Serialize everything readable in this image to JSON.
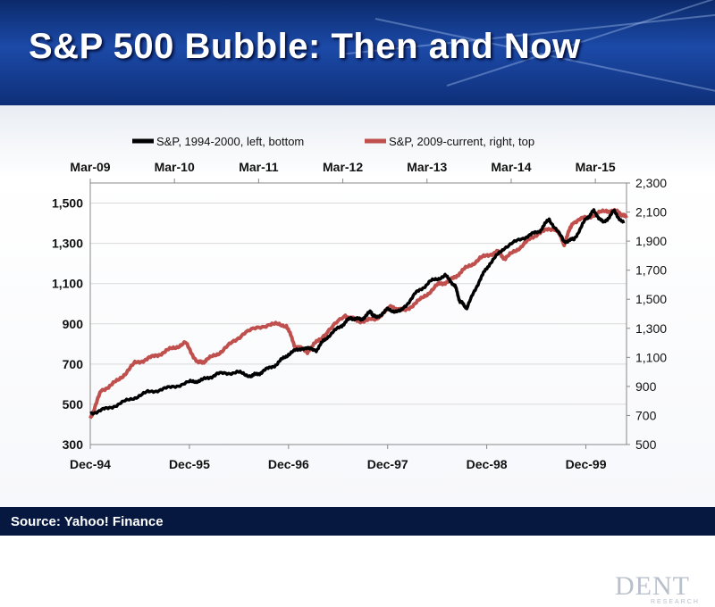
{
  "title": "S&P 500 Bubble: Then and Now",
  "source": "Source: Yahoo! Finance",
  "logo": {
    "main": "DENT",
    "sub": "RESEARCH"
  },
  "colors": {
    "black_series": "#000000",
    "red_series": "#c0504d",
    "header": "#1c4aa8",
    "footer": "#06183f"
  },
  "chart_data": {
    "type": "line",
    "legend": [
      "S&P, 1994-2000, left, bottom",
      "S&P, 2009-current, right, top"
    ],
    "left_axis": {
      "ticks": [
        "300",
        "500",
        "700",
        "900",
        "1,100",
        "1,300",
        "1,500"
      ],
      "range": [
        300,
        1600
      ]
    },
    "right_axis": {
      "ticks": [
        "500",
        "700",
        "900",
        "1,100",
        "1,300",
        "1,500",
        "1,700",
        "1,900",
        "2,100",
        "2,300"
      ],
      "range": [
        500,
        2300
      ]
    },
    "bottom_axis": {
      "ticks": [
        "Dec-94",
        "Dec-95",
        "Dec-96",
        "Dec-97",
        "Dec-98",
        "Dec-99"
      ],
      "range": [
        1994.92,
        2000.33
      ]
    },
    "top_axis": {
      "ticks": [
        "Mar-09",
        "Mar-10",
        "Mar-11",
        "Mar-12",
        "Mar-13",
        "Mar-14",
        "Mar-15"
      ],
      "range": [
        2009.17,
        2015.54
      ]
    },
    "series": [
      {
        "name": "S&P, 1994-2000, left, bottom",
        "axis": "left",
        "x": [
          1994.92,
          1995.1,
          1995.3,
          1995.5,
          1995.7,
          1995.92,
          1996.05,
          1996.2,
          1996.4,
          1996.55,
          1996.65,
          1996.8,
          1996.92,
          1997.05,
          1997.2,
          1997.3,
          1997.45,
          1997.55,
          1997.65,
          1997.75,
          1997.8,
          1997.92,
          1998.05,
          1998.2,
          1998.35,
          1998.5,
          1998.6,
          1998.65,
          1998.72,
          1998.85,
          1998.95,
          1999.1,
          1999.3,
          1999.45,
          1999.55,
          1999.7,
          1999.8,
          1999.92,
          2000.0,
          2000.1,
          2000.2,
          2000.3
        ],
        "values": [
          455,
          480,
          520,
          560,
          580,
          610,
          620,
          650,
          660,
          640,
          660,
          700,
          750,
          780,
          770,
          830,
          890,
          930,
          920,
          960,
          930,
          970,
          960,
          1050,
          1110,
          1140,
          1090,
          1010,
          980,
          1120,
          1200,
          1280,
          1330,
          1360,
          1420,
          1310,
          1320,
          1420,
          1460,
          1400,
          1460,
          1400
        ]
      },
      {
        "name": "S&P, 2009-current, right, top",
        "axis": "right",
        "x": [
          2009.17,
          2009.3,
          2009.5,
          2009.7,
          2009.9,
          2010.1,
          2010.3,
          2010.45,
          2010.55,
          2010.75,
          2011.0,
          2011.3,
          2011.5,
          2011.6,
          2011.75,
          2011.9,
          2012.2,
          2012.35,
          2012.55,
          2012.75,
          2012.9,
          2013.1,
          2013.3,
          2013.45,
          2013.6,
          2013.8,
          2014.0,
          2014.1,
          2014.3,
          2014.5,
          2014.7,
          2014.8,
          2014.9,
          2015.1,
          2015.3,
          2015.45,
          2015.54
        ],
        "values": [
          680,
          870,
          940,
          1060,
          1100,
          1150,
          1200,
          1060,
          1080,
          1150,
          1270,
          1330,
          1320,
          1180,
          1140,
          1230,
          1390,
          1350,
          1360,
          1450,
          1420,
          1500,
          1600,
          1630,
          1700,
          1780,
          1830,
          1780,
          1870,
          1960,
          1990,
          1880,
          2030,
          2070,
          2110,
          2100,
          2060
        ]
      }
    ]
  }
}
